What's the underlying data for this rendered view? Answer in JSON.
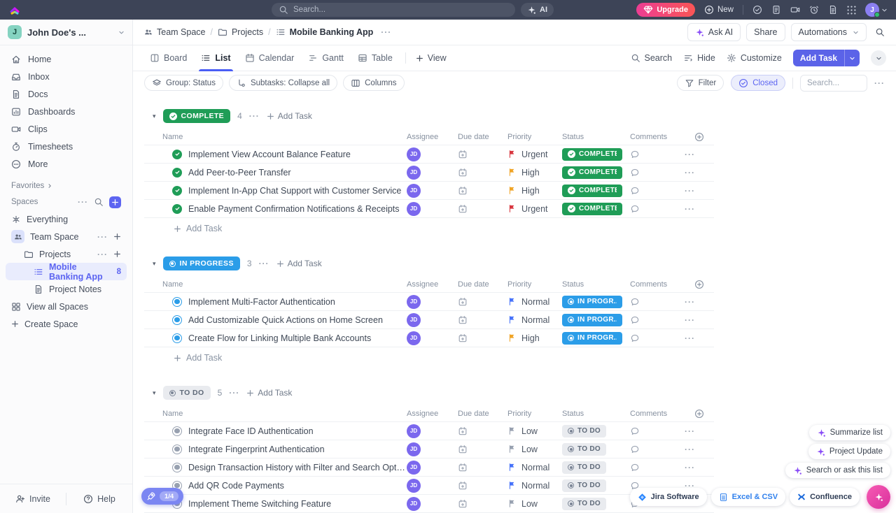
{
  "topbar": {
    "search_placeholder": "Search...",
    "ai_label": "AI",
    "upgrade_label": "Upgrade",
    "new_label": "New",
    "avatar_initial": "J"
  },
  "breadcrumb": {
    "space": "Team Space",
    "project": "Projects",
    "list": "Mobile Banking App",
    "ask_ai": "Ask AI",
    "share": "Share",
    "automations": "Automations"
  },
  "sidebar": {
    "workspace_initial": "J",
    "workspace_name": "John Doe's ...",
    "nav": [
      {
        "label": "Home",
        "icon": "home"
      },
      {
        "label": "Inbox",
        "icon": "inbox"
      },
      {
        "label": "Docs",
        "icon": "doc"
      },
      {
        "label": "Dashboards",
        "icon": "chart"
      },
      {
        "label": "Clips",
        "icon": "video"
      },
      {
        "label": "Timesheets",
        "icon": "stopwatch"
      },
      {
        "label": "More",
        "icon": "more"
      }
    ],
    "favorites_label": "Favorites",
    "spaces_label": "Spaces",
    "everything": "Everything",
    "team_space": "Team Space",
    "projects": "Projects",
    "active_list": "Mobile Banking App",
    "active_list_count": "8",
    "project_notes": "Project Notes",
    "view_all": "View all Spaces",
    "create_space": "Create Space",
    "invite": "Invite",
    "help": "Help",
    "trial": "1/4"
  },
  "tabs": {
    "items": [
      {
        "label": "Board",
        "icon": "board"
      },
      {
        "label": "List",
        "icon": "listview"
      },
      {
        "label": "Calendar",
        "icon": "calendar"
      },
      {
        "label": "Gantt",
        "icon": "gantt"
      },
      {
        "label": "Table",
        "icon": "tablegrid"
      }
    ],
    "active_index": 1,
    "add_view": "View",
    "search": "Search",
    "hide": "Hide",
    "customize": "Customize",
    "add_task": "Add Task"
  },
  "toolbar": {
    "group": "Group: Status",
    "subtasks": "Subtasks: Collapse all",
    "columns": "Columns",
    "filter": "Filter",
    "closed": "Closed",
    "search_placeholder": "Search..."
  },
  "table": {
    "columns": [
      "Name",
      "Assignee",
      "Due date",
      "Priority",
      "Status",
      "Comments"
    ],
    "assignee_initials": "JD",
    "add_task": "Add Task"
  },
  "groups": [
    {
      "type": "complete",
      "label": "COMPLETE",
      "row_label": "COMPLETE",
      "count": "4",
      "tasks": [
        {
          "name": "Implement View Account Balance Feature",
          "priority": "Urgent"
        },
        {
          "name": "Add Peer-to-Peer Transfer",
          "priority": "High"
        },
        {
          "name": "Implement In-App Chat Support with Customer Service",
          "priority": "High"
        },
        {
          "name": "Enable Payment Confirmation Notifications & Receipts",
          "priority": "Urgent"
        }
      ]
    },
    {
      "type": "inprogress",
      "label": "IN PROGRESS",
      "row_label": "IN PROGR...",
      "count": "3",
      "tasks": [
        {
          "name": "Implement Multi-Factor Authentication",
          "priority": "Normal"
        },
        {
          "name": "Add Customizable Quick Actions on Home Screen",
          "priority": "Normal"
        },
        {
          "name": "Create Flow for Linking Multiple Bank Accounts",
          "priority": "High"
        }
      ]
    },
    {
      "type": "todo",
      "label": "TO DO",
      "row_label": "TO DO",
      "count": "5",
      "tasks": [
        {
          "name": "Integrate Face ID Authentication",
          "priority": "Low"
        },
        {
          "name": "Integrate Fingerprint Authentication",
          "priority": "Low"
        },
        {
          "name": "Design Transaction History with Filter and Search Options",
          "priority": "Normal"
        },
        {
          "name": "Add QR Code Payments",
          "priority": "Normal"
        },
        {
          "name": "Implement Theme Switching Feature",
          "priority": "Low"
        }
      ]
    }
  ],
  "colors": {
    "accent": "#5d65f1",
    "complete": "#1f9d57",
    "in_progress": "#2b9de8",
    "urgent": "#d8363f",
    "high": "#f0a426",
    "normal": "#4672fa",
    "low": "#98a1b0"
  },
  "overlays": {
    "ai_actions": [
      "Summarize list",
      "Project Update",
      "Search or ask this list"
    ],
    "integrations": [
      {
        "label": "Jira Software",
        "icon": "jira",
        "cls": ""
      },
      {
        "label": "Excel & CSV",
        "icon": "excel",
        "cls": "excel"
      },
      {
        "label": "Confluence",
        "icon": "confluence",
        "cls": ""
      }
    ]
  }
}
